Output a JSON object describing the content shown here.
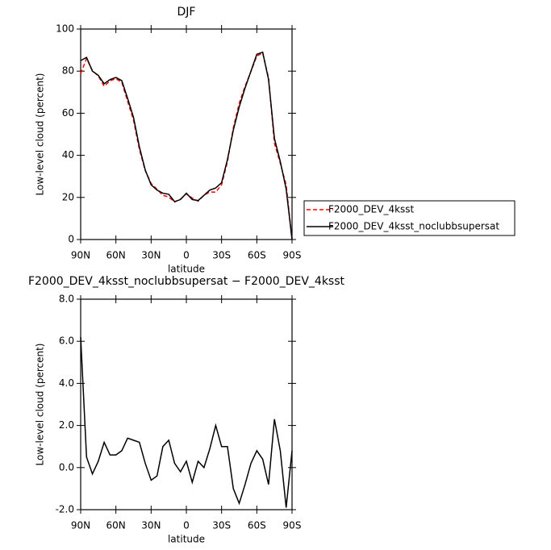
{
  "chart_data": [
    {
      "type": "line",
      "title": "DJF",
      "xlabel": "latitude",
      "ylabel": "Low-level cloud (percent)",
      "x": [
        90,
        85,
        80,
        75,
        70,
        65,
        60,
        55,
        50,
        45,
        40,
        35,
        30,
        25,
        20,
        15,
        10,
        5,
        0,
        -5,
        -10,
        -15,
        -20,
        -25,
        -30,
        -35,
        -40,
        -45,
        -50,
        -55,
        -60,
        -65,
        -70,
        -75,
        -80,
        -85,
        -90
      ],
      "xlim": [
        90,
        -90
      ],
      "xticks": [
        {
          "value": 90,
          "label": "90N"
        },
        {
          "value": 60,
          "label": "60N"
        },
        {
          "value": 30,
          "label": "30N"
        },
        0,
        {
          "value": -30,
          "label": "30S"
        },
        {
          "value": -60,
          "label": "60S"
        },
        {
          "value": -90,
          "label": "90S"
        }
      ],
      "ylim": [
        0,
        100
      ],
      "yticks": [
        0,
        20,
        40,
        60,
        80,
        100
      ],
      "legend": "right",
      "series": [
        {
          "name": "F2000_DEV_4ksst",
          "color": "#ff0000",
          "dash": true,
          "values": [
            78.8,
            86.0,
            80.3,
            77.7,
            72.8,
            75.4,
            76.4,
            74.7,
            65.6,
            56.7,
            42.8,
            32.8,
            26.6,
            23.9,
            21.0,
            20.2,
            17.8,
            19.2,
            21.7,
            19.7,
            18.2,
            21.0,
            22.6,
            22.5,
            26.0,
            37.0,
            53.0,
            64.7,
            72.8,
            79.8,
            87.2,
            88.6,
            76.8,
            45.7,
            36.2,
            25.9,
            0
          ]
        },
        {
          "name": "F2000_DEV_4ksst_noclubbsupersat",
          "color": "#000000",
          "dash": false,
          "values": [
            85,
            86.5,
            80,
            78,
            74,
            76,
            77,
            75.5,
            67,
            58,
            44,
            33,
            26,
            23.5,
            22,
            21.5,
            18,
            19,
            22,
            19,
            18.5,
            21,
            23.5,
            24.5,
            27,
            38,
            52,
            63,
            72,
            80,
            88,
            89,
            76,
            48,
            37,
            24,
            0
          ]
        }
      ]
    },
    {
      "type": "line",
      "title": "F2000_DEV_4ksst_noclubbsupersat − F2000_DEV_4ksst",
      "xlabel": "latitude",
      "ylabel": "Low-level cloud (percent)",
      "x": [
        90,
        85,
        80,
        75,
        70,
        65,
        60,
        55,
        50,
        45,
        40,
        35,
        30,
        25,
        20,
        15,
        10,
        5,
        0,
        -5,
        -10,
        -15,
        -20,
        -25,
        -30,
        -35,
        -40,
        -45,
        -50,
        -55,
        -60,
        -65,
        -70,
        -75,
        -80,
        -85,
        -90
      ],
      "xlim": [
        90,
        -90
      ],
      "xticks": [
        {
          "value": 90,
          "label": "90N"
        },
        {
          "value": 60,
          "label": "60N"
        },
        {
          "value": 30,
          "label": "30N"
        },
        0,
        {
          "value": -30,
          "label": "30S"
        },
        {
          "value": -60,
          "label": "60S"
        },
        {
          "value": -90,
          "label": "90S"
        }
      ],
      "ylim": [
        -2,
        8
      ],
      "yticks": [
        {
          "value": -2,
          "label": "-2.0"
        },
        {
          "value": 0,
          "label": "0.0"
        },
        {
          "value": 2,
          "label": "2.0"
        },
        {
          "value": 4,
          "label": "4.0"
        },
        {
          "value": 6,
          "label": "6.0"
        },
        {
          "value": 8,
          "label": "8.0"
        }
      ],
      "series": [
        {
          "color": "#000000",
          "values": [
            6.2,
            0.5,
            -0.3,
            0.3,
            1.2,
            0.6,
            0.6,
            0.8,
            1.4,
            1.3,
            1.2,
            0.2,
            -0.6,
            -0.4,
            1.0,
            1.3,
            0.2,
            -0.2,
            0.3,
            -0.7,
            0.3,
            0.0,
            0.9,
            2.0,
            1.0,
            1.0,
            -1.0,
            -1.7,
            -0.8,
            0.2,
            0.8,
            0.4,
            -0.8,
            2.3,
            0.8,
            -1.9,
            0.8
          ]
        }
      ]
    }
  ]
}
